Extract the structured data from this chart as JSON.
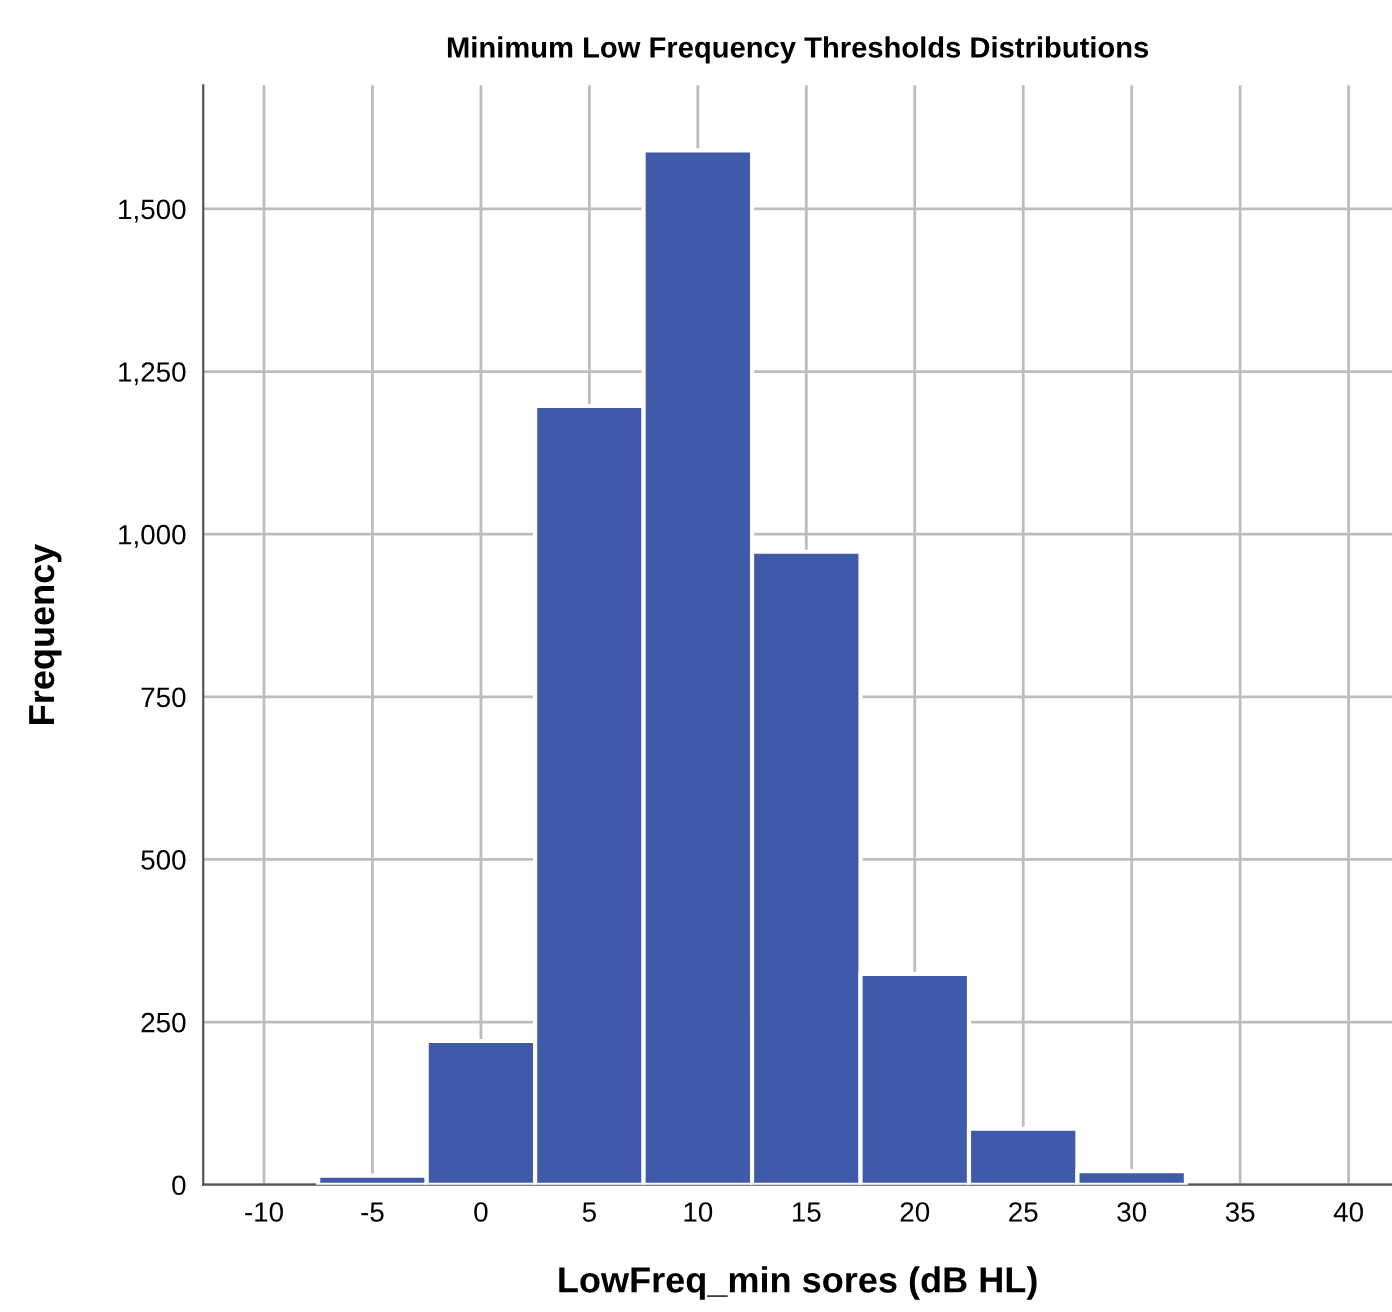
{
  "chart_data": {
    "type": "histogram",
    "title": "Minimum Low Frequency Thresholds Distributions",
    "xlabel": "LowFreq_min sores (dB HL)",
    "ylabel": "Frequency",
    "bins": [
      -12.5,
      -7.5,
      -2.5,
      2.5,
      7.5,
      12.5,
      17.5,
      22.5,
      27.5,
      32.5,
      37.5
    ],
    "values": [
      null,
      14,
      221,
      1197,
      1590,
      973,
      324,
      86,
      21,
      null
    ],
    "color": "#3f5aa8",
    "xlim": [
      -12.8,
      42
    ],
    "xticks": [
      -10,
      -5,
      0,
      5,
      10,
      15,
      20,
      25,
      30,
      35,
      40
    ],
    "ylim": [
      0,
      1690
    ],
    "yticks": [
      {
        "value": 0,
        "label": "0"
      },
      {
        "value": 250,
        "label": "250"
      },
      {
        "value": 500,
        "label": "500"
      },
      {
        "value": 750,
        "label": "750"
      },
      {
        "value": 1000,
        "label": "1,000"
      },
      {
        "value": 1250,
        "label": "1,250"
      },
      {
        "value": 1500,
        "label": "1,500"
      }
    ],
    "grid": true
  }
}
